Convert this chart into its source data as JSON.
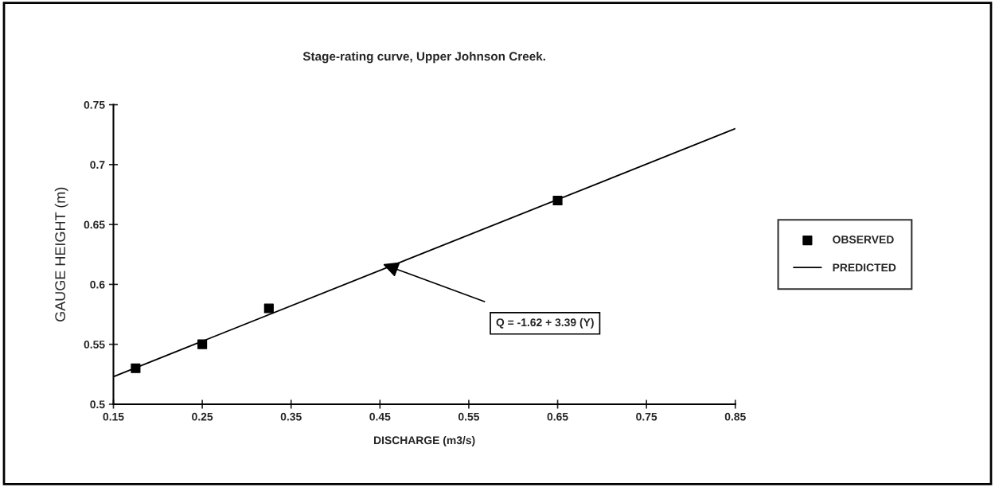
{
  "chart_data": {
    "type": "scatter",
    "title": "Stage-rating curve, Upper Johnson Creek.",
    "xlabel": "DISCHARGE (m3/s)",
    "ylabel": "GAUGE HEIGHT (m)",
    "series": [
      {
        "name": "OBSERVED",
        "color": "#000000",
        "marker": "square",
        "x": [
          0.175,
          0.25,
          0.325,
          0.65
        ],
        "values": [
          0.53,
          0.55,
          0.58,
          0.67
        ]
      },
      {
        "name": "PREDICTED",
        "type": "line",
        "color": "#000000",
        "marker": "none",
        "line_style": "solid",
        "x": [
          0.15,
          0.85
        ],
        "values": [
          0.523,
          0.73
        ]
      }
    ],
    "annotations": [
      "Q = -1.62 + 3.39 (Y)"
    ],
    "xlim": [
      0.15,
      0.85
    ],
    "xticks": [
      0.15,
      0.25,
      0.35,
      0.45,
      0.55,
      0.65,
      0.75,
      0.85
    ],
    "ylim": [
      0.5,
      0.75
    ],
    "yticks": [
      0.5,
      0.55,
      0.6,
      0.65,
      0.7,
      0.75
    ],
    "grid": false,
    "legend": "right"
  }
}
